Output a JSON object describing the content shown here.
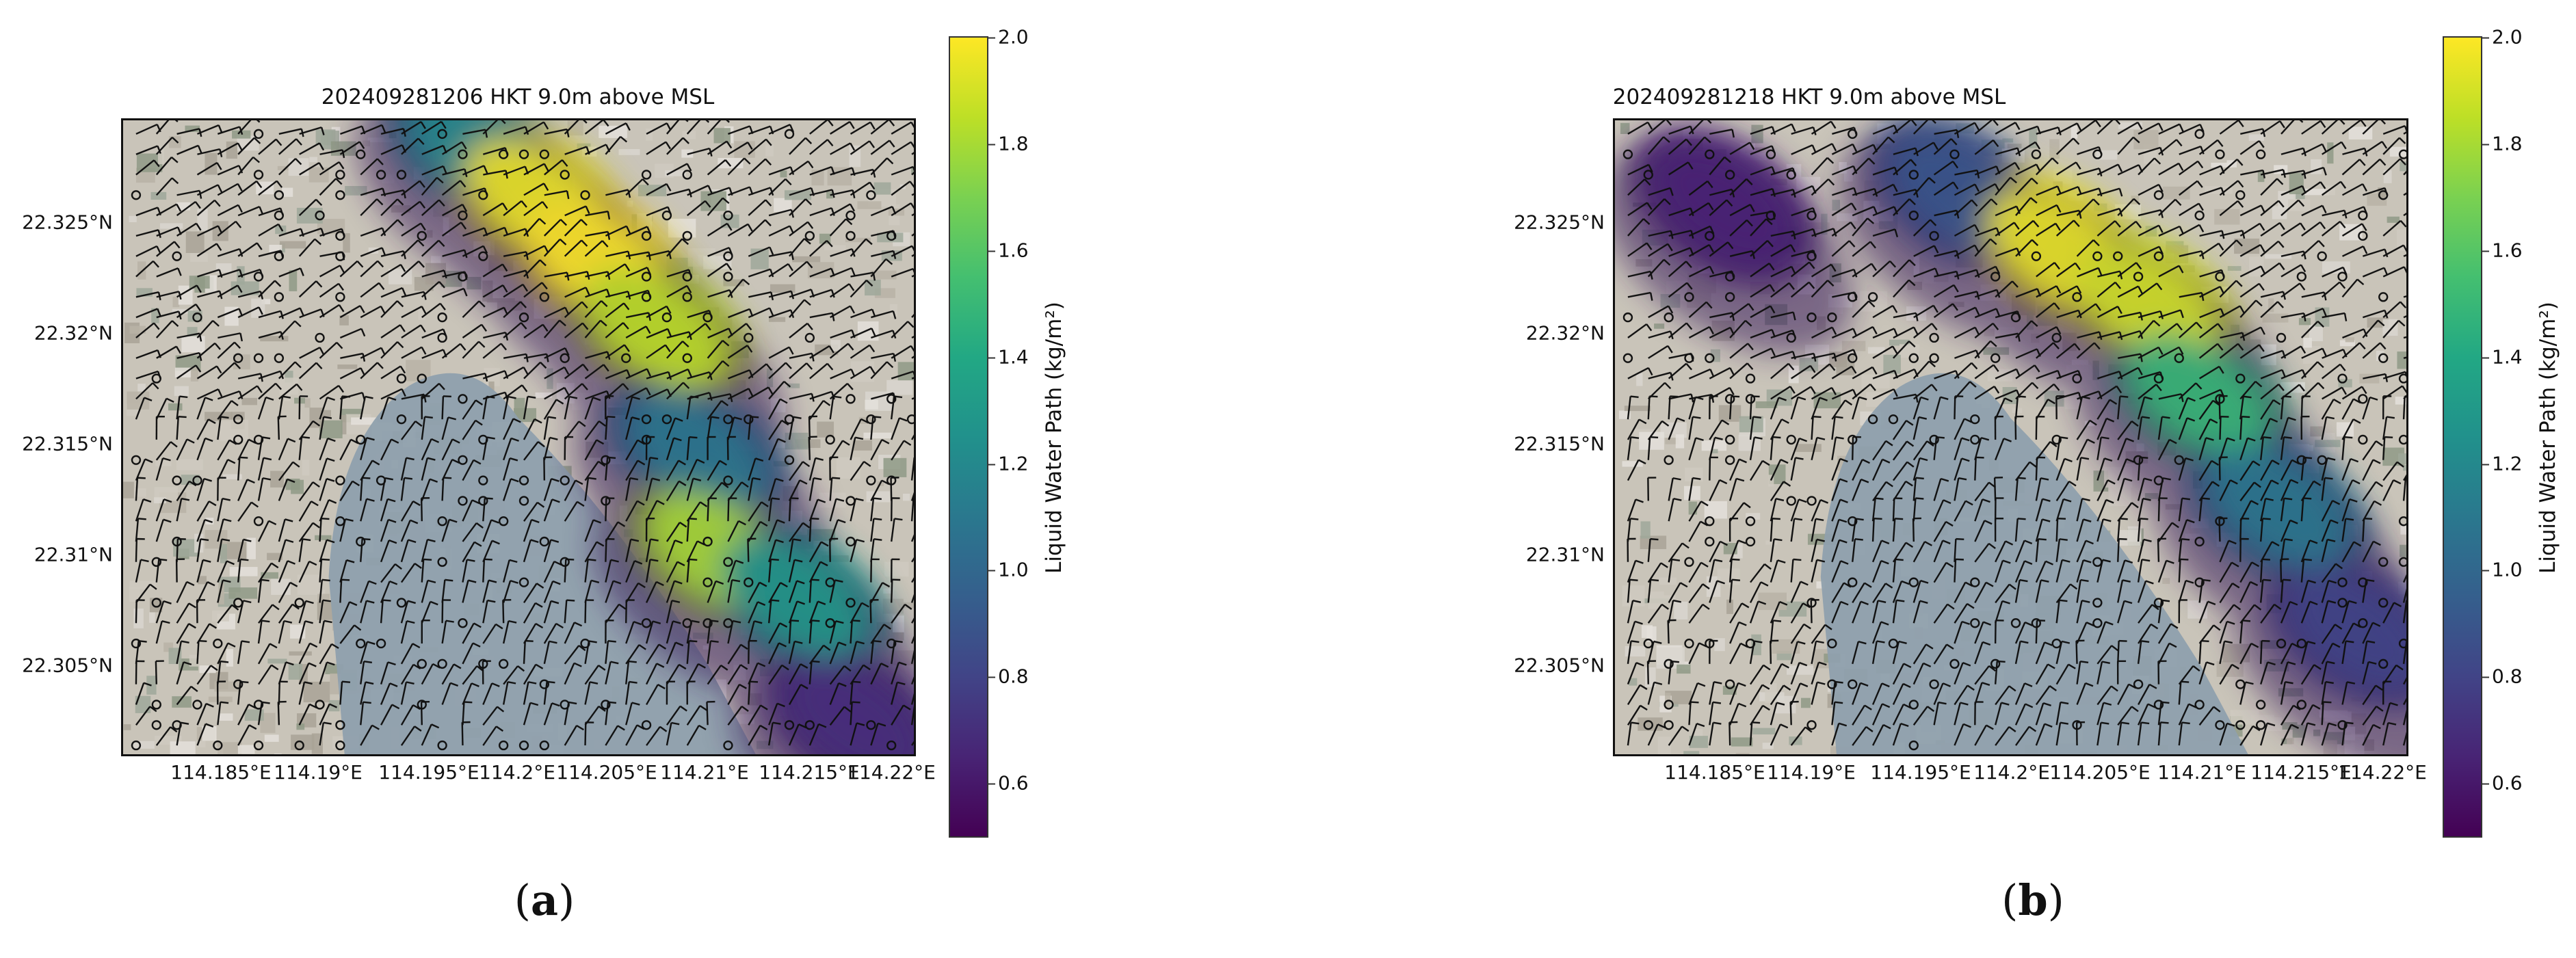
{
  "chart_data": [
    {
      "type": "heatmap",
      "panel": "a",
      "title": "202409281206 HKT 9.0m above MSL",
      "caption_label": "a",
      "x_ticks": [
        "114.185°E",
        "114.19°E",
        "114.195°E",
        "114.2°E",
        "114.205°E",
        "114.21°E",
        "114.215°E",
        "114.22°E"
      ],
      "x_tick_values": [
        114.185,
        114.19,
        114.195,
        114.2,
        114.205,
        114.21,
        114.215,
        114.22
      ],
      "y_ticks": [
        "22.325°N",
        "22.32°N",
        "22.315°N",
        "22.31°N",
        "22.305°N"
      ],
      "y_tick_values": [
        22.325,
        22.32,
        22.315,
        22.31,
        22.305
      ],
      "xlim": [
        114.1805,
        114.2205
      ],
      "ylim": [
        22.3015,
        22.3298
      ],
      "colorbar": {
        "label": "Liquid Water Path (kg/m²)",
        "ticks": [
          "0.6",
          "0.8",
          "1.0",
          "1.2",
          "1.4",
          "1.6",
          "1.8",
          "2.0"
        ],
        "range": [
          0.5,
          2.0
        ],
        "colormap": "viridis"
      },
      "lwp_band": [
        {
          "lon": 114.1985,
          "lat": 22.3285,
          "lwp": 1.2
        },
        {
          "lon": 114.2015,
          "lat": 22.3262,
          "lwp": 1.95
        },
        {
          "lon": 114.2045,
          "lat": 22.3235,
          "lwp": 2.0
        },
        {
          "lon": 114.2075,
          "lat": 22.3205,
          "lwp": 1.85
        },
        {
          "lon": 114.2095,
          "lat": 22.315,
          "lwp": 1.1
        },
        {
          "lon": 114.2105,
          "lat": 22.3105,
          "lwp": 1.8
        },
        {
          "lon": 114.2145,
          "lat": 22.3085,
          "lwp": 1.3
        },
        {
          "lon": 114.2175,
          "lat": 22.303,
          "lwp": 0.7
        }
      ]
    },
    {
      "type": "heatmap",
      "panel": "b",
      "title": "202409281218 HKT 9.0m above MSL",
      "caption_label": "b",
      "x_ticks": [
        "114.185°E",
        "114.19°E",
        "114.195°E",
        "114.2°E",
        "114.205°E",
        "114.21°E",
        "114.215°E",
        "114.22°E"
      ],
      "x_tick_values": [
        114.185,
        114.19,
        114.195,
        114.2,
        114.205,
        114.21,
        114.215,
        114.22
      ],
      "y_ticks": [
        "22.325°N",
        "22.32°N",
        "22.315°N",
        "22.31°N",
        "22.305°N"
      ],
      "y_tick_values": [
        22.325,
        22.32,
        22.315,
        22.31,
        22.305
      ],
      "xlim": [
        114.1805,
        114.2205
      ],
      "ylim": [
        22.3015,
        22.3298
      ],
      "colorbar": {
        "label": "Liquid Water Path (kg/m²)",
        "ticks": [
          "0.6",
          "0.8",
          "1.0",
          "1.2",
          "1.4",
          "1.6",
          "1.8",
          "2.0"
        ],
        "range": [
          0.5,
          2.0
        ],
        "colormap": "viridis"
      },
      "lwp_band": [
        {
          "lon": 114.186,
          "lat": 22.326,
          "lwp": 0.65
        },
        {
          "lon": 114.198,
          "lat": 22.3265,
          "lwp": 0.9
        },
        {
          "lon": 114.203,
          "lat": 22.324,
          "lwp": 1.95
        },
        {
          "lon": 114.2075,
          "lat": 22.3215,
          "lwp": 1.9
        },
        {
          "lon": 114.21,
          "lat": 22.3175,
          "lwp": 1.5
        },
        {
          "lon": 114.214,
          "lat": 22.3125,
          "lwp": 1.1
        },
        {
          "lon": 114.218,
          "lat": 22.307,
          "lwp": 0.8
        }
      ]
    }
  ]
}
